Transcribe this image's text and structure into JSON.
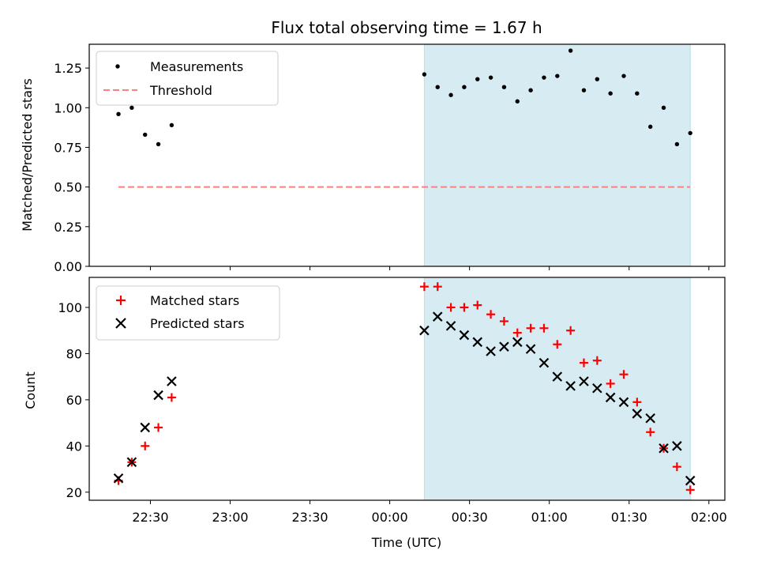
{
  "chart_data": [
    {
      "type": "scatter",
      "title": "Flux total observing time = 1.67 h",
      "xlabel": "",
      "ylabel": "Matched/Predicted stars",
      "ylim": [
        0,
        1.4
      ],
      "xlim": [
        "22:07",
        "02:06"
      ],
      "yticks": [
        "0.00",
        "0.25",
        "0.50",
        "0.75",
        "1.00",
        "1.25"
      ],
      "grid": false,
      "legend_position": "top-left",
      "shaded_span": {
        "x": [
          "00:13",
          "01:53"
        ],
        "color": "#add8e6"
      },
      "series": [
        {
          "name": "Measurements",
          "color": "#000000",
          "marker": "dot",
          "x": [
            "22:18",
            "22:23",
            "22:28",
            "22:33",
            "22:38",
            "00:13",
            "00:18",
            "00:23",
            "00:28",
            "00:33",
            "00:38",
            "00:43",
            "00:48",
            "00:53",
            "00:58",
            "01:03",
            "01:08",
            "01:13",
            "01:18",
            "01:23",
            "01:28",
            "01:33",
            "01:38",
            "01:43",
            "01:48",
            "01:53"
          ],
          "y": [
            0.96,
            1.0,
            0.83,
            0.77,
            0.89,
            1.21,
            1.13,
            1.08,
            1.13,
            1.18,
            1.19,
            1.13,
            1.04,
            1.11,
            1.19,
            1.2,
            1.36,
            1.11,
            1.18,
            1.09,
            1.2,
            1.09,
            0.88,
            1.0,
            0.77,
            0.84
          ]
        },
        {
          "name": "Threshold",
          "color": "#ff7f7f",
          "style": "dashed",
          "x": [
            "22:18",
            "01:53"
          ],
          "y": [
            0.5,
            0.5
          ]
        }
      ]
    },
    {
      "type": "scatter",
      "title": "",
      "xlabel": "Time (UTC)",
      "ylabel": "Count",
      "ylim": [
        16.5,
        113
      ],
      "xlim": [
        "22:07",
        "02:06"
      ],
      "yticks": [
        "20",
        "40",
        "60",
        "80",
        "100"
      ],
      "xticks": [
        "22:30",
        "23:00",
        "23:30",
        "00:00",
        "00:30",
        "01:00",
        "01:30",
        "02:00"
      ],
      "grid": false,
      "legend_position": "top-left",
      "shaded_span": {
        "x": [
          "00:13",
          "01:53"
        ],
        "color": "#add8e6"
      },
      "series": [
        {
          "name": "Matched stars",
          "color": "#ff0000",
          "marker": "plus",
          "x": [
            "22:18",
            "22:23",
            "22:28",
            "22:33",
            "22:38",
            "00:13",
            "00:18",
            "00:23",
            "00:28",
            "00:33",
            "00:38",
            "00:43",
            "00:48",
            "00:53",
            "00:58",
            "01:03",
            "01:08",
            "01:13",
            "01:18",
            "01:23",
            "01:28",
            "01:33",
            "01:38",
            "01:43",
            "01:48",
            "01:53"
          ],
          "y": [
            25,
            33,
            40,
            48,
            61,
            109,
            109,
            100,
            100,
            101,
            97,
            94,
            89,
            91,
            91,
            84,
            90,
            76,
            77,
            67,
            71,
            59,
            46,
            39,
            31,
            21
          ]
        },
        {
          "name": "Predicted stars",
          "color": "#000000",
          "marker": "x",
          "x": [
            "22:18",
            "22:23",
            "22:28",
            "22:33",
            "22:38",
            "00:13",
            "00:18",
            "00:23",
            "00:28",
            "00:33",
            "00:38",
            "00:43",
            "00:48",
            "00:53",
            "00:58",
            "01:03",
            "01:08",
            "01:13",
            "01:18",
            "01:23",
            "01:28",
            "01:33",
            "01:38",
            "01:43",
            "01:48",
            "01:53"
          ],
          "y": [
            26,
            33,
            48,
            62,
            68,
            90,
            96,
            92,
            88,
            85,
            81,
            83,
            85,
            82,
            76,
            70,
            66,
            68,
            65,
            61,
            59,
            54,
            52,
            39,
            40,
            25
          ]
        }
      ]
    }
  ]
}
